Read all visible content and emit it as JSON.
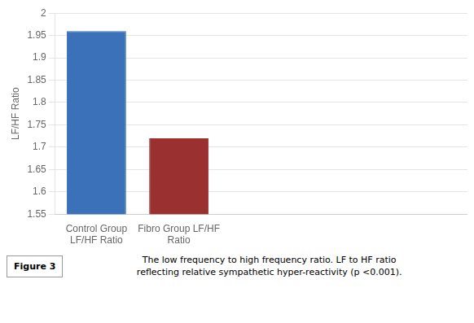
{
  "chart_data": {
    "type": "bar",
    "categories": [
      "Control Group\nLF/HF Ratio",
      "Fibro Group LF/HF\nRatio",
      null,
      null,
      null
    ],
    "values": [
      1.96,
      1.72,
      null,
      null,
      null
    ],
    "colors": [
      "#3B71B8",
      "#9B3030"
    ],
    "y_label": "LF/HF Ratio",
    "ylim": [
      1.55,
      2.0
    ],
    "yticks": [
      1.55,
      1.6,
      1.65,
      1.7,
      1.75,
      1.8,
      1.85,
      1.9,
      1.95,
      2.0
    ],
    "grid": true,
    "annotations": [
      "Figure 3",
      "The low frequency to high frequency ratio. LF to HF ratio",
      "reflecting relative sympathetic hyper-reactivity (p <0.001)."
    ]
  }
}
